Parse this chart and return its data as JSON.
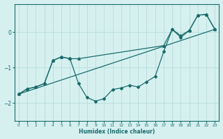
{
  "xlabel": "Humidex (Indice chaleur)",
  "bg_color": "#d6f0f0",
  "line_color": "#1a6b6b",
  "grid_color": "#b8dcdc",
  "xlim": [
    -0.5,
    23.5
  ],
  "ylim": [
    -2.5,
    0.8
  ],
  "yticks": [
    -2,
    -1,
    0
  ],
  "xticks": [
    0,
    1,
    2,
    3,
    4,
    5,
    6,
    7,
    8,
    9,
    10,
    11,
    12,
    13,
    14,
    15,
    16,
    17,
    18,
    19,
    20,
    21,
    22,
    23
  ],
  "main_x": [
    0,
    1,
    2,
    3,
    4,
    5,
    6,
    7,
    8,
    9,
    10,
    11,
    12,
    13,
    14,
    15,
    16,
    17,
    18,
    19,
    20,
    21,
    22,
    23
  ],
  "main_y": [
    -1.75,
    -1.6,
    -1.55,
    -1.45,
    -0.8,
    -0.7,
    -0.75,
    -1.45,
    -1.85,
    -1.95,
    -1.88,
    -1.62,
    -1.58,
    -1.5,
    -1.55,
    -1.4,
    -1.25,
    -0.55,
    0.08,
    -0.15,
    0.05,
    0.48,
    0.5,
    0.08
  ],
  "trend_x": [
    0,
    23
  ],
  "trend_y": [
    -1.75,
    0.08
  ],
  "upper_x": [
    0,
    1,
    2,
    3,
    4,
    5,
    6,
    7,
    17,
    18,
    19,
    20,
    21,
    22,
    23
  ],
  "upper_y": [
    -1.75,
    -1.6,
    -1.55,
    -1.45,
    -0.8,
    -0.7,
    -0.75,
    -0.75,
    -0.38,
    0.08,
    -0.1,
    0.05,
    0.48,
    0.5,
    0.08
  ]
}
